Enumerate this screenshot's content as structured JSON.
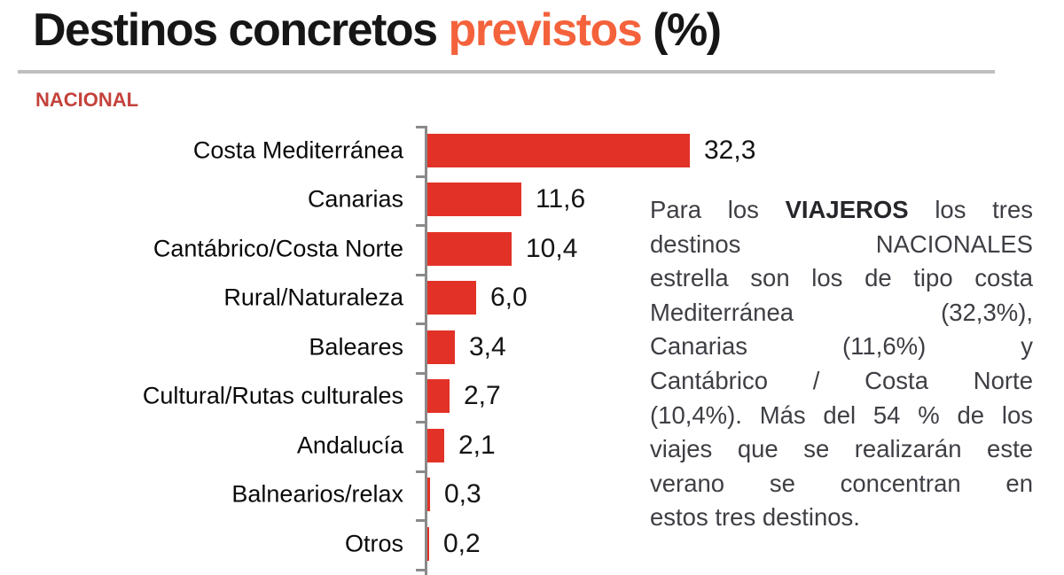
{
  "page": {
    "title": {
      "part_black_1": "Destinos concretos ",
      "part_accent": "previstos",
      "part_black_2": " (%)"
    },
    "section_label": "NACIONAL"
  },
  "chart_data": {
    "type": "bar",
    "orientation": "horizontal",
    "title": "Destinos concretos previstos (%)",
    "group_label": "NACIONAL",
    "categories": [
      "Costa Mediterránea",
      "Canarias",
      "Cantábrico/Costa Norte",
      "Rural/Naturaleza",
      "Baleares",
      "Cultural/Rutas culturales",
      "Andalucía",
      "Balnearios/relax",
      "Otros"
    ],
    "values": [
      32.3,
      11.6,
      10.4,
      6.0,
      3.4,
      2.7,
      2.1,
      0.3,
      0.2
    ],
    "value_labels": [
      "32,3",
      "11,6",
      "10,4",
      "6,0",
      "3,4",
      "2,7",
      "2,1",
      "0,3",
      "0,2"
    ],
    "xlabel": "",
    "ylabel": "",
    "xlim": [
      0,
      35
    ],
    "value_axis_visible": false,
    "grid": false,
    "legend": false,
    "bar_color": "#e23227",
    "axis_color": "#8a8a8a"
  },
  "paragraph": {
    "lines": [
      {
        "justify": true,
        "segments": [
          {
            "t": "Para los "
          },
          {
            "t": "VIAJEROS",
            "b": true
          },
          {
            "t": " los tres"
          }
        ]
      },
      {
        "justify": true,
        "segments": [
          {
            "t": "destinos NACIONALES"
          }
        ]
      },
      {
        "justify": true,
        "segments": [
          {
            "t": "estrella son los de tipo costa"
          }
        ]
      },
      {
        "justify": true,
        "segments": [
          {
            "t": "Mediterránea (32,3%),"
          }
        ]
      },
      {
        "justify": true,
        "segments": [
          {
            "t": "Canarias (11,6%) y"
          }
        ]
      },
      {
        "justify": true,
        "segments": [
          {
            "t": "Cantábrico / Costa Norte"
          }
        ]
      },
      {
        "justify": true,
        "segments": [
          {
            "t": "(10,4%). Más del 54 % de los"
          }
        ]
      },
      {
        "justify": true,
        "segments": [
          {
            "t": "viajes que se realizarán este"
          }
        ]
      },
      {
        "justify": true,
        "segments": [
          {
            "t": "verano se concentran en"
          }
        ]
      },
      {
        "justify": false,
        "segments": [
          {
            "t": "estos tres destinos."
          }
        ]
      }
    ]
  },
  "colors": {
    "title_black": "#161616",
    "title_accent_orange": "#f4623c",
    "section_red": "#c4423c",
    "bar_red": "#e23227",
    "axis_gray": "#8a8a8a",
    "divider_gray": "#bfbfbf",
    "paragraph_gray": "#3e3f44"
  }
}
